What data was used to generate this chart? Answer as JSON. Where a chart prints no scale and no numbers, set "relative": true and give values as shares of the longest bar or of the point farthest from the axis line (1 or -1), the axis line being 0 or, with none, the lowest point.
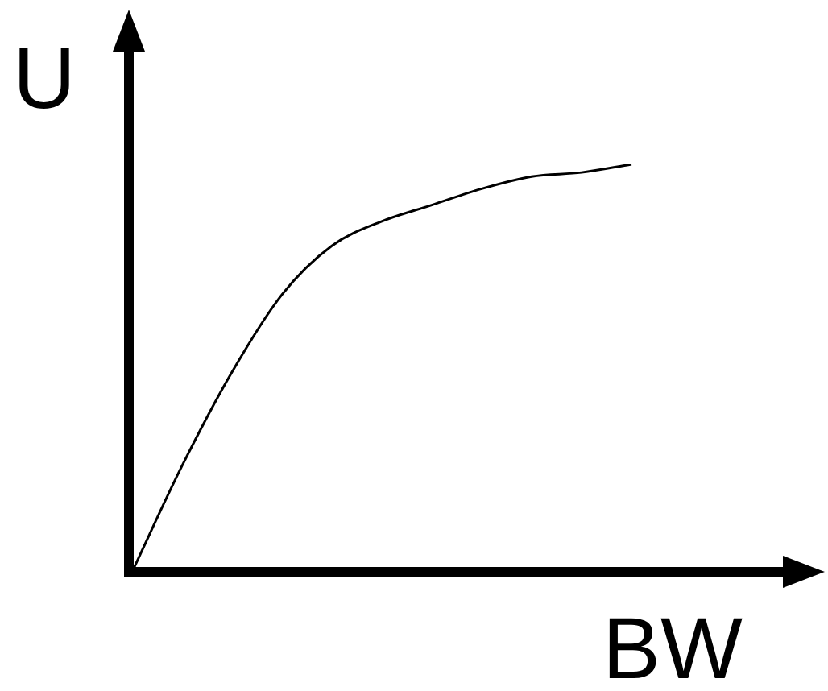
{
  "chart_data": {
    "type": "line",
    "relative": true,
    "xlabel": "BW",
    "ylabel": "U",
    "color": "#000000",
    "categories": [
      null,
      null,
      null,
      null,
      null,
      null,
      null,
      null,
      null,
      null,
      null
    ],
    "values": [
      0,
      0.26,
      0.49,
      0.68,
      0.8,
      0.86,
      0.9,
      0.94,
      0.97,
      0.98,
      1
    ]
  }
}
